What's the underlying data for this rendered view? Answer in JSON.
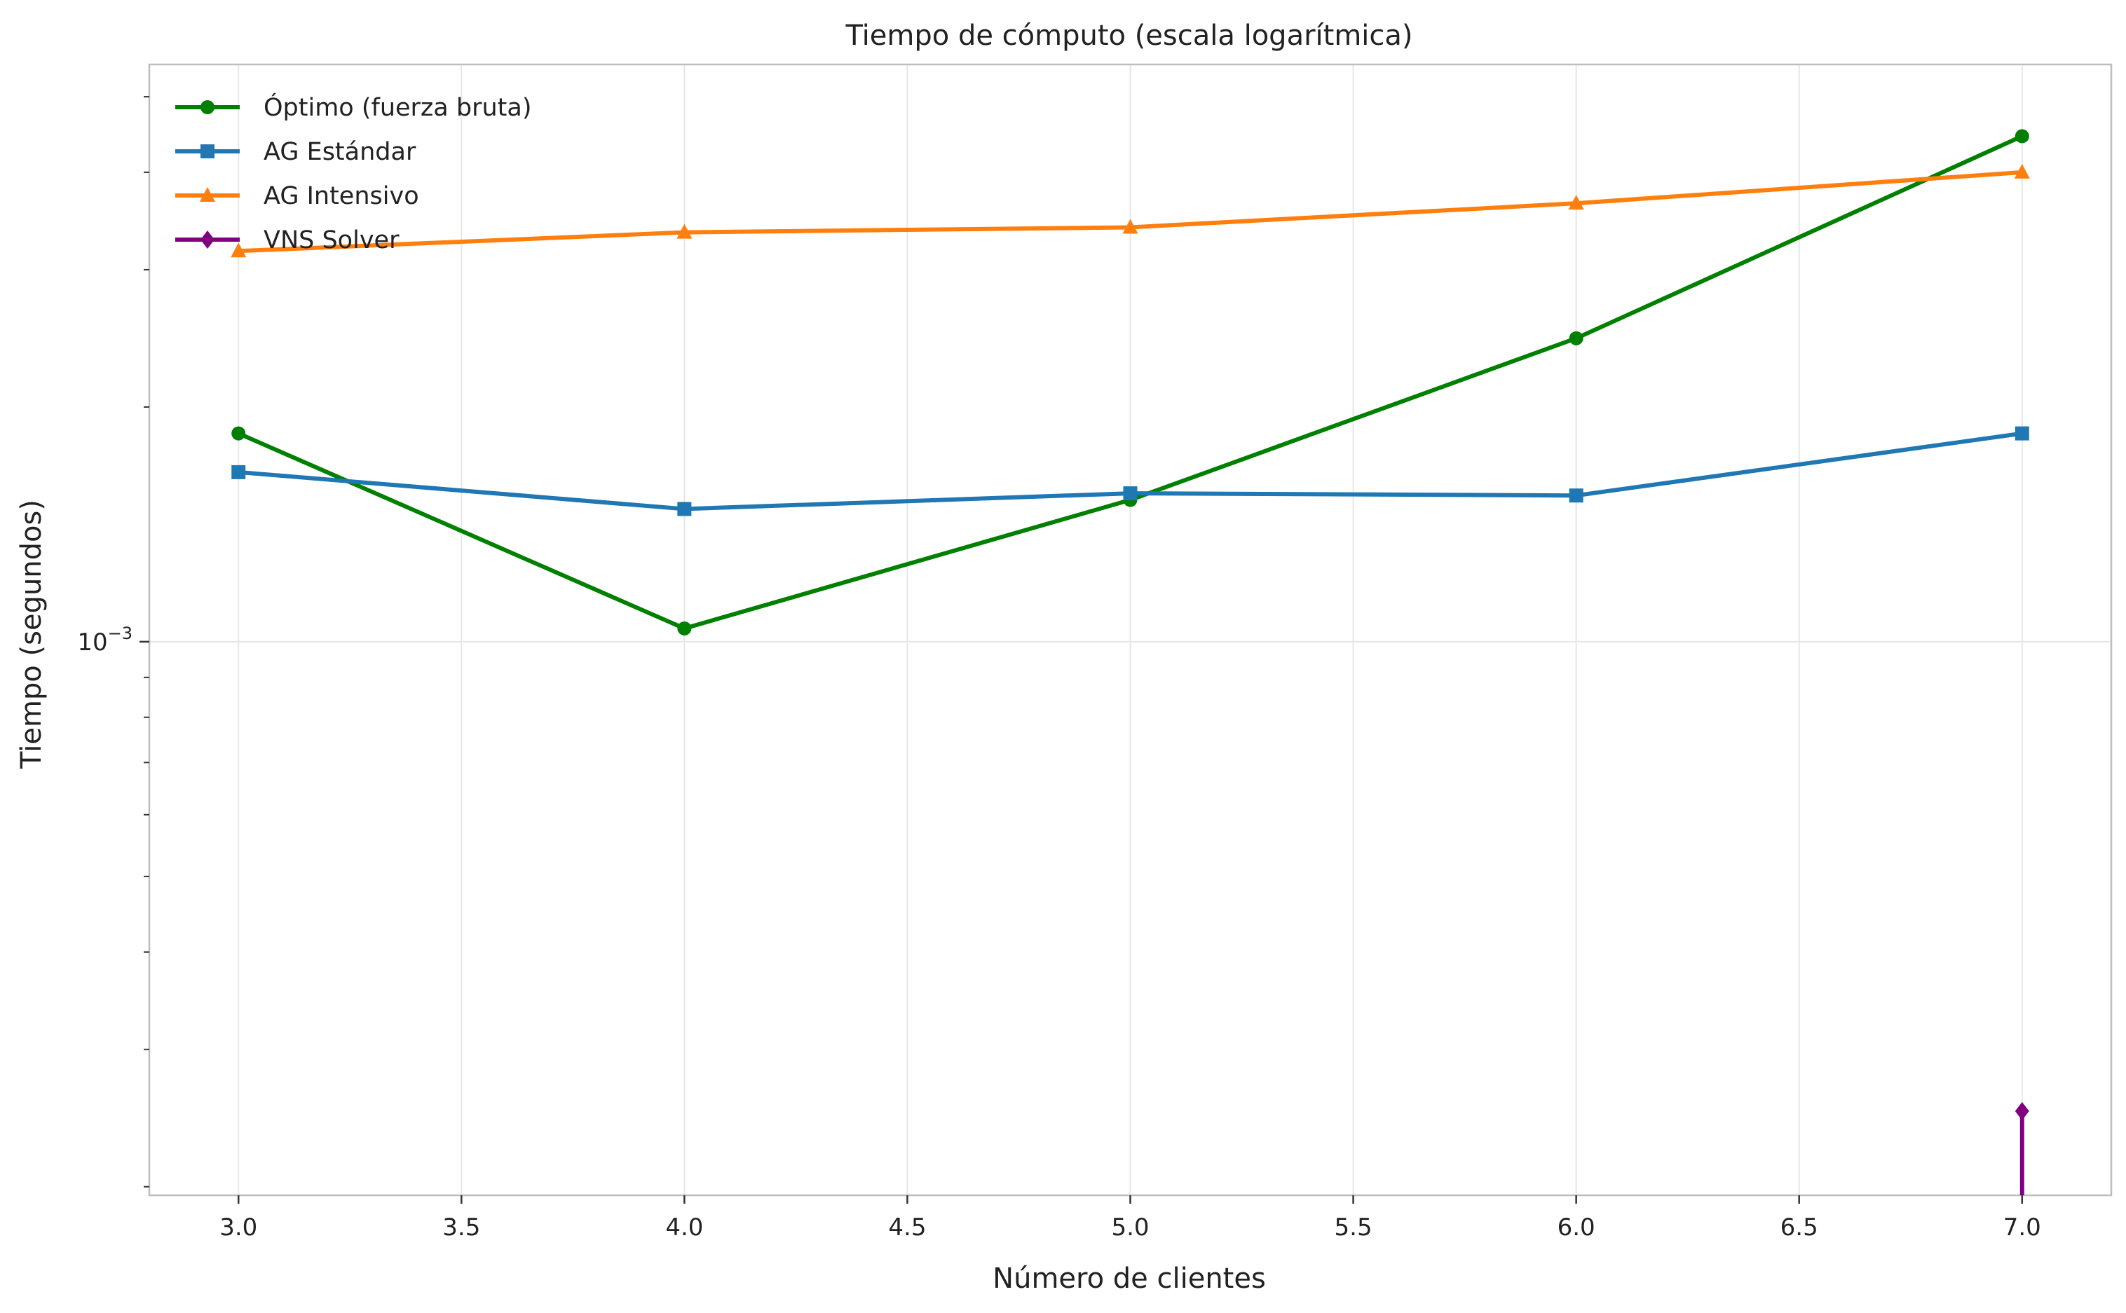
{
  "chart_data": {
    "type": "line",
    "title": "Tiempo de cómputo (escala logarítmica)",
    "xlabel": "Número de clientes",
    "ylabel": "Tiempo (segundos)",
    "xlim": [
      2.8,
      7.2
    ],
    "ylim": [
      0.000195,
      0.0055
    ],
    "yscale": "log",
    "grid": true,
    "legend_position": "top-left",
    "x_ticks": [
      3.0,
      3.5,
      4.0,
      4.5,
      5.0,
      5.5,
      6.0,
      6.5,
      7.0
    ],
    "x_tick_labels": [
      "3.0",
      "3.5",
      "4.0",
      "4.5",
      "5.0",
      "5.5",
      "6.0",
      "6.5",
      "7.0"
    ],
    "y_major_tick": {
      "value": 0.001,
      "base": "10",
      "exponent": "−3"
    },
    "y_minor_ticks": [
      0.0002,
      0.0003,
      0.0004,
      0.0005,
      0.0006,
      0.0007,
      0.0008,
      0.0009,
      0.002,
      0.003,
      0.004,
      0.005
    ],
    "series": [
      {
        "name": "Óptimo (fuerza bruta)",
        "color": "#008000",
        "marker": "circle",
        "x": [
          3,
          4,
          5,
          6,
          7
        ],
        "y": [
          0.00185,
          0.00104,
          0.00152,
          0.00245,
          0.00445
        ]
      },
      {
        "name": "AG Estándar",
        "color": "#1f77b4",
        "marker": "square",
        "x": [
          3,
          4,
          5,
          6,
          7
        ],
        "y": [
          0.00165,
          0.00148,
          0.00155,
          0.00154,
          0.00185
        ]
      },
      {
        "name": "AG Intensivo",
        "color": "#ff7f0e",
        "marker": "triangle",
        "x": [
          3,
          4,
          5,
          6,
          7
        ],
        "y": [
          0.00317,
          0.00335,
          0.0034,
          0.00365,
          0.004
        ]
      },
      {
        "name": "VNS Solver",
        "color": "#800080",
        "marker": "diamond",
        "x": [
          7
        ],
        "y": [
          0.00025
        ]
      }
    ]
  }
}
